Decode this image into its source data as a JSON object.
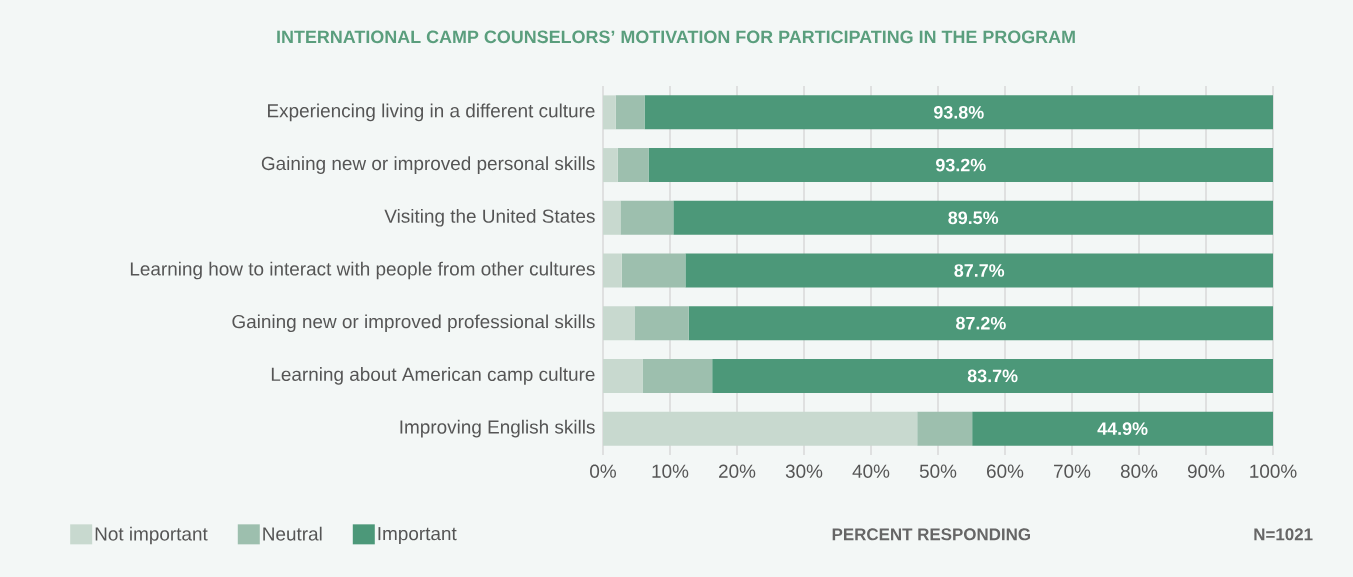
{
  "chart_data": {
    "type": "bar",
    "orientation": "horizontal",
    "stacked": true,
    "title": "INTERNATIONAL CAMP COUNSELORS’ MOTIVATION FOR PARTICIPATING IN THE PROGRAM",
    "xlabel": "PERCENT RESPONDING",
    "annotations": [
      "N=1021"
    ],
    "categories": [
      "Experiencing living in a different culture",
      "Gaining new or improved personal skills",
      "Visiting the United States",
      "Learning how to interact with people from other cultures",
      "Gaining new or improved professional skills",
      "Learning about American camp culture",
      "Improving English skills"
    ],
    "series": [
      {
        "name": "Not important",
        "color": "#c8d9cf",
        "values": [
          1.9,
          2.2,
          2.6,
          2.8,
          4.7,
          5.9,
          46.9
        ]
      },
      {
        "name": "Neutral",
        "color": "#9dbfae",
        "values": [
          4.3,
          4.6,
          7.9,
          9.5,
          8.1,
          10.4,
          8.2
        ]
      },
      {
        "name": "Important",
        "color": "#4c9879",
        "values": [
          93.8,
          93.2,
          89.5,
          87.7,
          87.2,
          83.7,
          44.9
        ],
        "value_labels": [
          "93.8%",
          "93.2%",
          "89.5%",
          "87.7%",
          "87.2%",
          "83.7%",
          "44.9%"
        ]
      }
    ],
    "xlim": [
      0,
      100
    ],
    "xticks": [
      {
        "value": 0,
        "label": "0%"
      },
      {
        "value": 10,
        "label": "10%"
      },
      {
        "value": 20,
        "label": "20%"
      },
      {
        "value": 30,
        "label": "30%"
      },
      {
        "value": 40,
        "label": "40%"
      },
      {
        "value": 50,
        "label": "50%"
      },
      {
        "value": 60,
        "label": "60%"
      },
      {
        "value": 70,
        "label": "70%"
      },
      {
        "value": 80,
        "label": "80%"
      },
      {
        "value": 90,
        "label": "90%"
      },
      {
        "value": 100,
        "label": "100%"
      }
    ],
    "grid": "x",
    "legend": "bottom left"
  }
}
